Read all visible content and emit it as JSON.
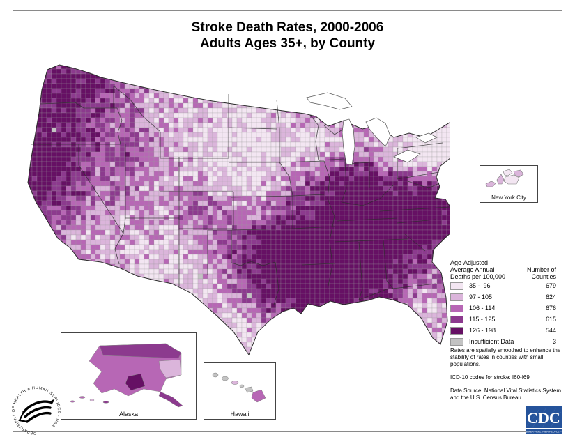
{
  "title": {
    "line1": "Stroke Death Rates, 2000-2006",
    "line2": "Adults Ages 35+, by County"
  },
  "legend": {
    "header_left1": "Age-Adjusted",
    "header_left2": "Average Annual",
    "header_left3": "Deaths per 100,000",
    "header_right1": "Number of",
    "header_right2": "Counties",
    "rows": [
      {
        "label": "35 -  96",
        "count": "679",
        "color": "#f3e6f2"
      },
      {
        "label": "97 - 105",
        "count": "624",
        "color": "#dbb5db"
      },
      {
        "label": "106 - 114",
        "count": "676",
        "color": "#b767b5"
      },
      {
        "label": "115 - 125",
        "count": "615",
        "color": "#8c3a8e"
      },
      {
        "label": "126 - 198",
        "count": "544",
        "color": "#661064"
      },
      {
        "label": "Insufficient Data",
        "count": "3",
        "color": "#c3c3c3"
      }
    ]
  },
  "notes": {
    "smoothing": "Rates are spatially smoothed to enhance the stability of rates in counties with small populations.",
    "icd": "ICD-10 codes for stroke: I60-I69",
    "source": "Data Source: National Vital Statistics System and the U.S. Census Bureau"
  },
  "insets": {
    "alaska": "Alaska",
    "hawaii": "Hawaii",
    "nyc": "New York City"
  },
  "logos": {
    "cdc_acronym": "CDC",
    "cdc_tagline": "SAFER·HEALTHIER·PEOPLE™",
    "hhs_circle_text": "DEPARTMENT OF HEALTH & HUMAN SERVICES · USA"
  },
  "chart_data": {
    "type": "heatmap",
    "subtype": "county-choropleth-map",
    "title": "Stroke Death Rates, 2000-2006 Adults Ages 35+, by County",
    "measure": "Age-Adjusted Average Annual Deaths per 100,000",
    "categories": [
      "35 - 96",
      "97 - 105",
      "106 - 114",
      "115 - 125",
      "126 - 198",
      "Insufficient Data"
    ],
    "values": [
      679,
      624,
      676,
      615,
      544,
      3
    ],
    "values_label": "Number of Counties",
    "palette": [
      "#f3e6f2",
      "#dbb5db",
      "#b767b5",
      "#8c3a8e",
      "#661064",
      "#c3c3c3"
    ],
    "legend_position": "right"
  }
}
